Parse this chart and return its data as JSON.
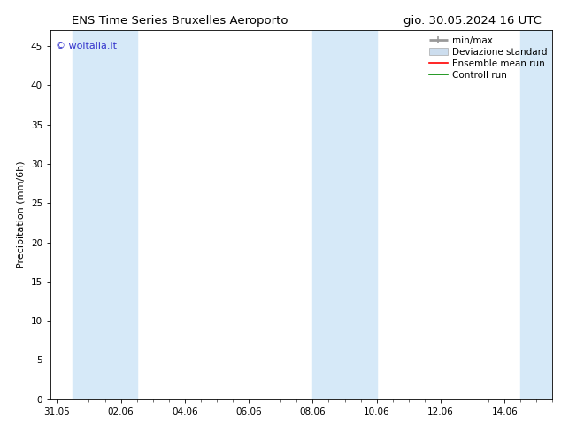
{
  "title_left": "ENS Time Series Bruxelles Aeroporto",
  "title_right": "gio. 30.05.2024 16 UTC",
  "ylabel": "Precipitation (mm/6h)",
  "ylim": [
    0,
    47
  ],
  "yticks": [
    0,
    5,
    10,
    15,
    20,
    25,
    30,
    35,
    40,
    45
  ],
  "xtick_labels": [
    "31.05",
    "02.06",
    "04.06",
    "06.06",
    "08.06",
    "10.06",
    "12.06",
    "14.06"
  ],
  "xtick_positions": [
    0,
    2,
    4,
    6,
    8,
    10,
    12,
    14
  ],
  "xlim": [
    -0.2,
    15.5
  ],
  "watermark": "© woitalia.it",
  "watermark_color": "#3333cc",
  "background_color": "#ffffff",
  "shaded_bands": [
    {
      "x_start": 0.5,
      "x_end": 2.5,
      "color": "#d6e9f8"
    },
    {
      "x_start": 8.0,
      "x_end": 10.0,
      "color": "#d6e9f8"
    },
    {
      "x_start": 14.5,
      "x_end": 15.5,
      "color": "#d6e9f8"
    }
  ],
  "legend_items": [
    {
      "label": "min/max",
      "type": "hline",
      "color": "#999999",
      "linewidth": 2.0
    },
    {
      "label": "Deviazione standard",
      "type": "patch",
      "color": "#ccddee",
      "edgecolor": "#aaaaaa"
    },
    {
      "label": "Ensemble mean run",
      "type": "line",
      "color": "#ff0000",
      "linewidth": 1.2
    },
    {
      "label": "Controll run",
      "type": "line",
      "color": "#008800",
      "linewidth": 1.2
    }
  ],
  "title_fontsize": 9.5,
  "ylabel_fontsize": 8,
  "tick_fontsize": 7.5,
  "watermark_fontsize": 8,
  "legend_fontsize": 7.5
}
